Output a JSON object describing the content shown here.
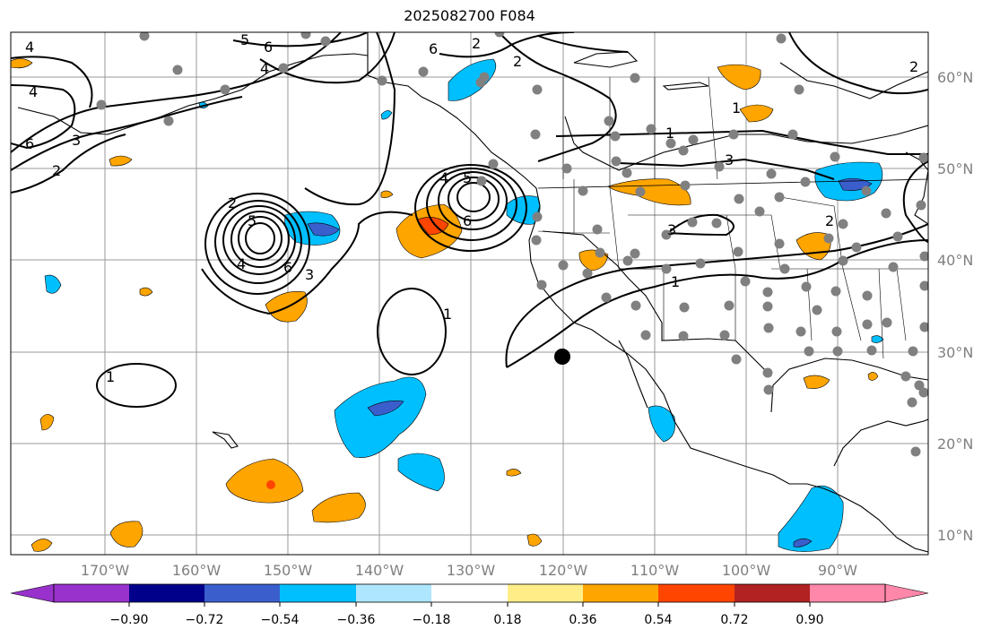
{
  "title": "2025082700 F084",
  "lat_ticks": [
    "60°N",
    "50°N",
    "40°N",
    "30°N",
    "20°N",
    "10°N"
  ],
  "lon_ticks": [
    "170°W",
    "160°W",
    "150°W",
    "140°W",
    "130°W",
    "120°W",
    "110°W",
    "100°W",
    "90°W"
  ],
  "colorbar": {
    "labels": [
      "−0.90",
      "−0.72",
      "−0.54",
      "−0.36",
      "−0.18",
      "0.18",
      "0.36",
      "0.54",
      "0.72",
      "0.90"
    ],
    "colors": [
      "#9932cc",
      "#00008b",
      "#3a5fcd",
      "#00bfff",
      "#afe6ff",
      "#ffffff",
      "#ffee88",
      "#ffa500",
      "#ff4500",
      "#b22222",
      "#ff88aa"
    ]
  },
  "contour_labels": [
    "4",
    "4",
    "6",
    "5",
    "6",
    "4",
    "2",
    "2",
    "6",
    "5",
    "3",
    "2",
    "3",
    "4",
    "6",
    "5",
    "4",
    "6",
    "2",
    "1",
    "1",
    "1",
    "3",
    "3",
    "1",
    "2",
    "1",
    "2"
  ]
}
